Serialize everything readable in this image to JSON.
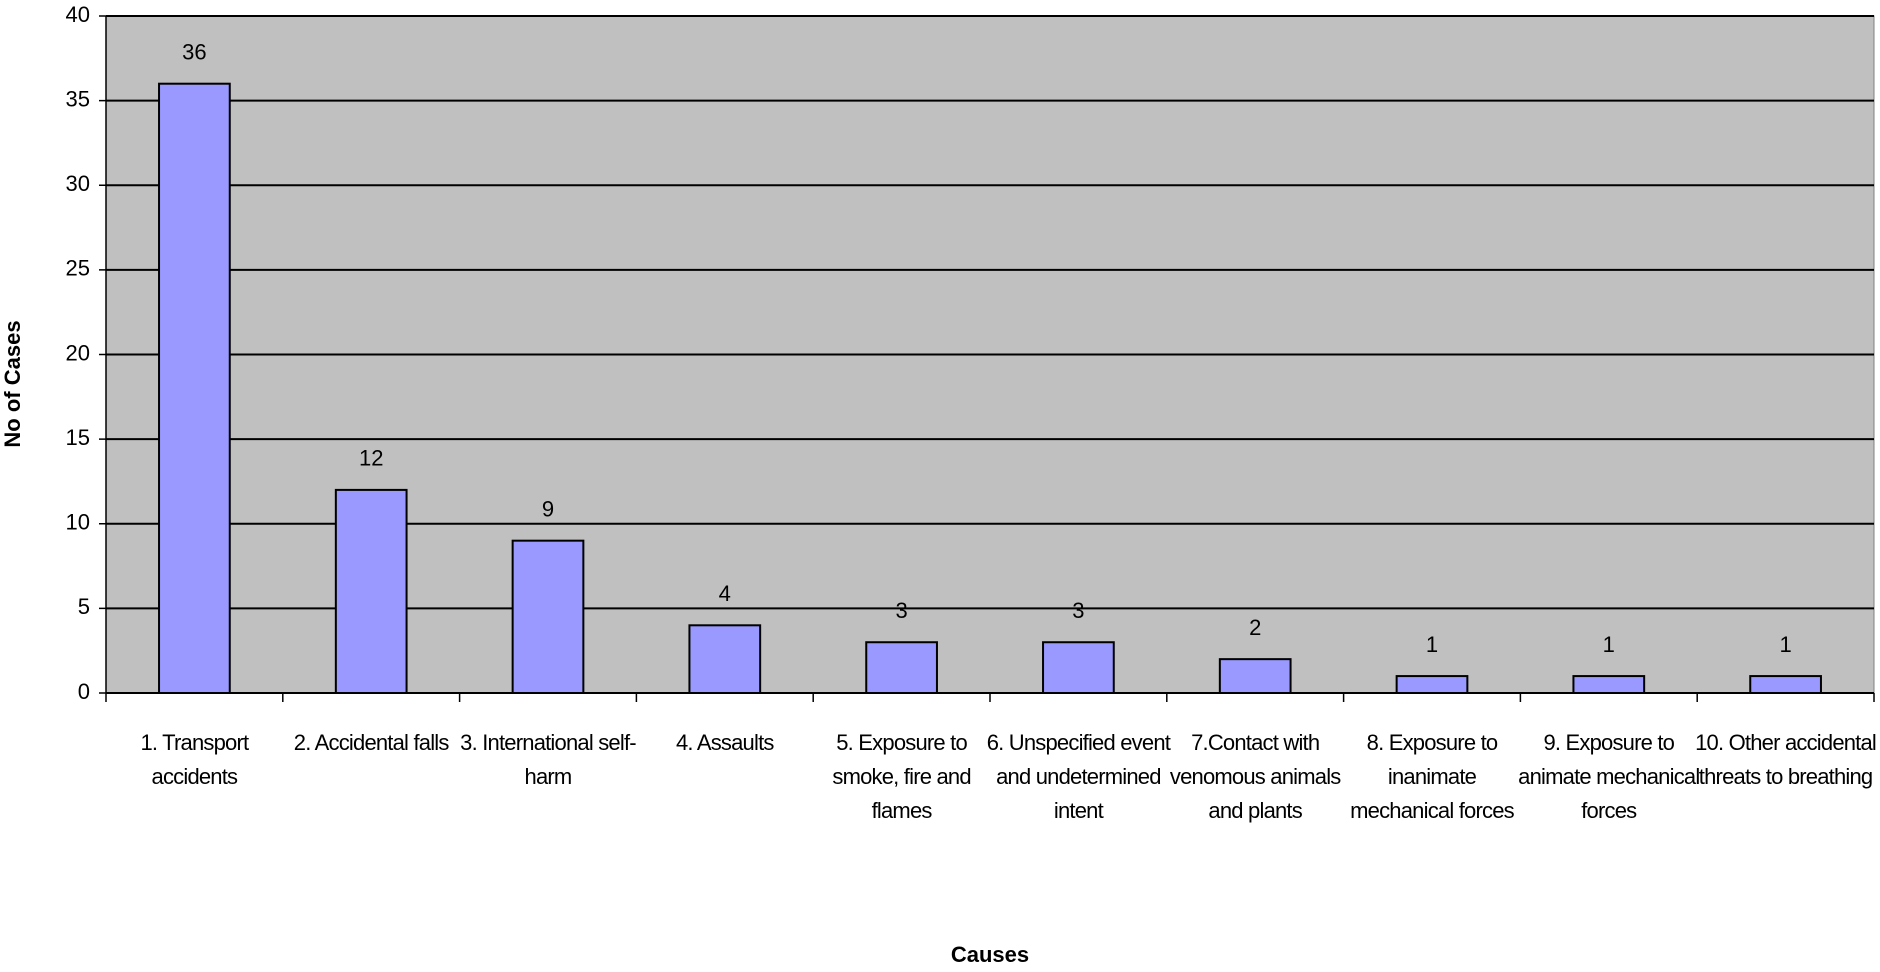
{
  "chart_data": {
    "type": "bar",
    "x_label": "Causes",
    "y_label": "No of Cases",
    "categories": [
      "1. Transport accidents",
      "2. Accidental falls",
      "3. International self-harm",
      "4. Assaults",
      "5. Exposure to smoke, fire and flames",
      "6. Unspecified event and undetermined intent",
      "7.Contact with venomous animals and plants",
      "8. Exposure to inanimate mechanical forces",
      "9. Exposure to animate mechanical forces",
      "10. Other accidental threats to breathing"
    ],
    "values": [
      36,
      12,
      9,
      4,
      3,
      3,
      2,
      1,
      1,
      1
    ],
    "color": "#9999ff",
    "ylim": [
      0,
      40
    ],
    "yticks": [
      0,
      5,
      10,
      15,
      20,
      25,
      30,
      35,
      40
    ],
    "grid": true
  }
}
